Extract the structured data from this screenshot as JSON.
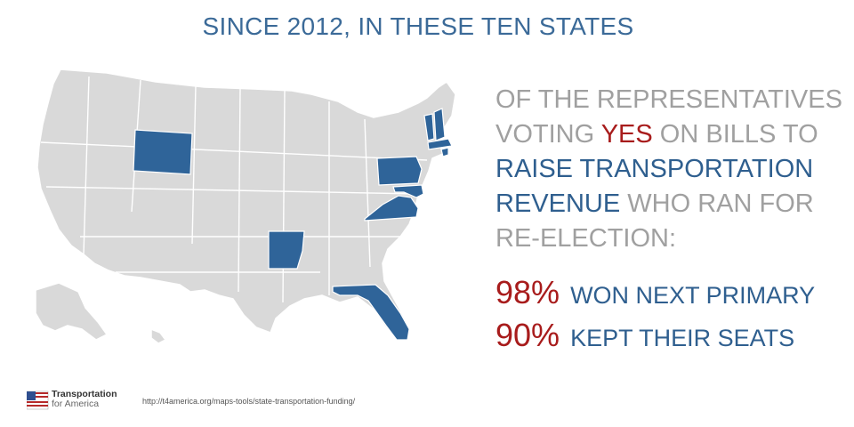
{
  "title": "SINCE 2012, IN THESE TEN STATES",
  "statement": {
    "part1": "OF THE REPRESENTATIVES VOTING ",
    "yes": "YES",
    "part2": " ON BILLS TO ",
    "highlight": "RAISE TRANSPORTATION REVENUE",
    "part3": " WHO RAN FOR RE-ELECTION:"
  },
  "stats": [
    {
      "pct": "98%",
      "label": "WON NEXT PRIMARY"
    },
    {
      "pct": "90%",
      "label": "KEPT THEIR SEATS"
    }
  ],
  "map": {
    "highlighted_states": [
      "Wyoming",
      "Arkansas",
      "Florida",
      "Pennsylvania",
      "Virginia",
      "Maryland",
      "Vermont",
      "New Hampshire",
      "Massachusetts",
      "Rhode Island"
    ],
    "colors": {
      "highlight": "#2f6499",
      "base": "#d9d9d9",
      "border": "#ffffff"
    }
  },
  "logo": {
    "line1": "Transportation",
    "line2": "for America"
  },
  "url": "http://t4america.org/maps-tools/state-transportation-funding/"
}
